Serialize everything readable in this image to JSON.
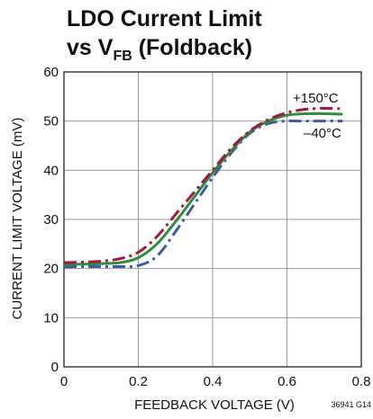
{
  "chart_data": {
    "type": "line",
    "title_line1": "LDO Current Limit",
    "title_line2_prefix": "vs V",
    "title_line2_sub": "FB",
    "title_line2_suffix": " (Foldback)",
    "xlabel": "FEEDBACK VOLTAGE (V)",
    "ylabel": "CURRENT LIMIT VOLTAGE (mV)",
    "xlim": [
      0,
      0.8
    ],
    "ylim": [
      0,
      60
    ],
    "xticks": [
      0,
      0.2,
      0.4,
      0.6,
      0.8
    ],
    "xtick_labels": [
      "0",
      "0.2",
      "0.4",
      "0.6",
      "0.8"
    ],
    "yticks": [
      0,
      10,
      20,
      30,
      40,
      50,
      60
    ],
    "ytick_labels": [
      "0",
      "10",
      "20",
      "30",
      "40",
      "50",
      "60"
    ],
    "grid": true,
    "series": [
      {
        "name": "+150°C",
        "color": "#a01a3c",
        "style": "dashdot",
        "x": [
          0.0,
          0.05,
          0.1,
          0.15,
          0.2,
          0.25,
          0.3,
          0.35,
          0.4,
          0.45,
          0.5,
          0.55,
          0.6,
          0.65,
          0.7,
          0.75
        ],
        "y": [
          21.2,
          21.3,
          21.5,
          22.0,
          23.3,
          26.5,
          31.0,
          35.5,
          40.0,
          44.5,
          48.0,
          50.3,
          51.7,
          52.4,
          52.6,
          52.5
        ]
      },
      {
        "name": "",
        "color": "#2f8c3c",
        "style": "solid",
        "x": [
          0.0,
          0.05,
          0.1,
          0.15,
          0.2,
          0.25,
          0.3,
          0.35,
          0.4,
          0.45,
          0.5,
          0.55,
          0.6,
          0.65,
          0.7,
          0.75
        ],
        "y": [
          20.8,
          20.9,
          21.0,
          21.2,
          22.2,
          25.0,
          29.5,
          34.5,
          39.5,
          44.0,
          47.8,
          50.0,
          51.2,
          51.5,
          51.5,
          51.4
        ]
      },
      {
        "name": "–40°C",
        "color": "#3e5aa8",
        "style": "dashdot",
        "x": [
          0.0,
          0.05,
          0.1,
          0.15,
          0.2,
          0.25,
          0.3,
          0.35,
          0.4,
          0.45,
          0.5,
          0.55,
          0.6,
          0.65,
          0.7,
          0.75
        ],
        "y": [
          20.3,
          20.4,
          20.4,
          20.4,
          20.6,
          22.5,
          27.5,
          33.0,
          38.5,
          43.5,
          47.5,
          49.5,
          50.0,
          50.0,
          50.0,
          50.0
        ]
      }
    ],
    "annotations": [
      {
        "text": "+150°C"
      },
      {
        "text": "–40°C"
      }
    ],
    "figure_id": "36941 G14"
  }
}
